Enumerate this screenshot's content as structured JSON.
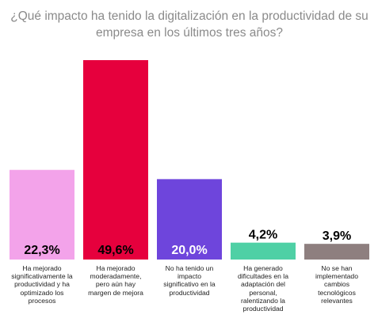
{
  "title_lines": [
    "¿Qué impacto ha tenido la digitalización en la productividad de su",
    "empresa en los últimos tres años?"
  ],
  "chart_data": {
    "type": "bar",
    "title": "¿Qué impacto ha tenido la digitalización en la productividad de su empresa en los últimos tres años?",
    "xlabel": "",
    "ylabel": "",
    "ylim": [
      0,
      49.6
    ],
    "grid": false,
    "categories": [
      "Ha mejorado significativamente la productividad y ha optimizado los procesos",
      "Ha mejorado moderadamente, pero aún hay margen de mejora",
      "No ha tenido un impacto significativo en la productividad",
      "Ha generado dificultades en la adaptación del personal, ralentizando la productividad",
      "No se han implementado cambios tecnológicos relevantes"
    ],
    "category_lines": [
      [
        "Ha mejorado",
        "significativamente la",
        "productividad y ha",
        "optimizado los",
        "procesos"
      ],
      [
        "Ha mejorado",
        "moderadamente,",
        "pero aún hay",
        "margen de mejora"
      ],
      [
        "No ha tenido un",
        "impacto",
        "significativo en la",
        "productividad"
      ],
      [
        "Ha generado",
        "dificultades en la",
        "adaptación del",
        "personal,",
        "ralentizando la",
        "productividad"
      ],
      [
        "No se han",
        "implementado",
        "cambios",
        "tecnológicos",
        "relevantes"
      ]
    ],
    "values": [
      22.3,
      49.6,
      20.0,
      4.2,
      3.9
    ],
    "value_labels": [
      "22,3%",
      "49,6%",
      "20,0%",
      "4,2%",
      "3,9%"
    ],
    "colors": [
      "#f3a3ea",
      "#e6003d",
      "#6e45dc",
      "#4fd0a5",
      "#8e7f7f"
    ],
    "label_colors": [
      "#000000",
      "#000000",
      "#ffffff",
      "#000000",
      "#000000"
    ]
  }
}
